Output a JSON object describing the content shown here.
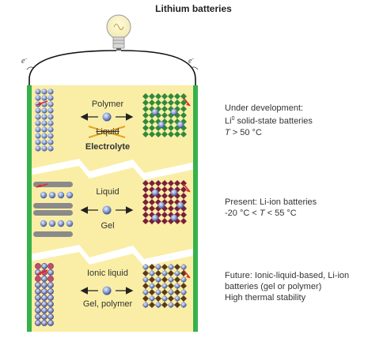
{
  "title": "Lithium batteries",
  "electron_label": "e",
  "electron_sup": "-",
  "panels": [
    {
      "labels": {
        "top": "Polymer",
        "strike": "Liquid",
        "bottom": "Electrolyte"
      },
      "note": {
        "line1": "Under development:",
        "line2_a": "Li",
        "line2_sup": "0",
        "line2_b": " solid-state batteries",
        "line3_t": "T",
        "line3_rest": " > 50 °C"
      }
    },
    {
      "labels": {
        "top": "Liquid",
        "bottom": "Gel"
      },
      "note": {
        "line1": "Present: Li-ion batteries",
        "line2_a": "-20 °C < ",
        "line2_t": "T",
        "line2_b": " < 55 °C"
      }
    },
    {
      "labels": {
        "top": "Ionic liquid",
        "bottom": "Gel, polymer"
      },
      "note": {
        "line1": "Future: Ionic-liquid-based, Li-ion",
        "line2": "batteries (gel or polymer)",
        "line3": "High thermal stability"
      }
    }
  ],
  "colors": {
    "electrolyte": "#faeea6",
    "electrode": "#35b24a",
    "li_ball": "#8b9fd4",
    "graphite": "#8a8a8a",
    "oxide_dark": "#7b1f3a",
    "oxide_green": "#2f8a3a",
    "oxide_brown": "#5a3a1a",
    "arrow_red": "#d8292f"
  }
}
